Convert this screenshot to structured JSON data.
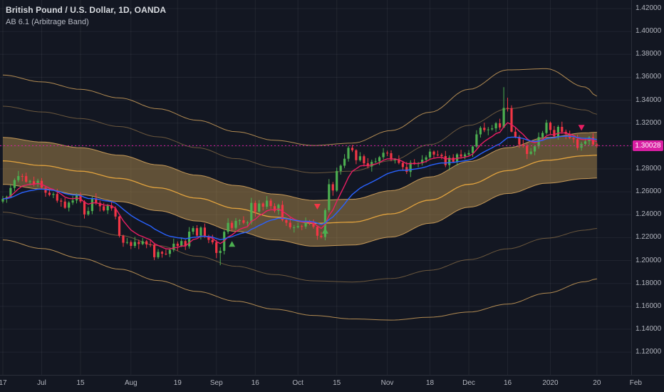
{
  "header": {
    "symbol_title": "British Pound / U.S. Dollar, 1D, OANDA",
    "indicator_label": "AB 6.1 (Arbitrage Band)"
  },
  "colors": {
    "background": "#131722",
    "grid": "rgba(255,255,255,0.06)",
    "axis_text": "#b2b5be",
    "axis_border": "#2a2e39",
    "title_text": "#d8dbe0",
    "legend_text": "#b6bac4",
    "up": "#4caf50",
    "down": "#f23645",
    "band_fill": "rgba(173,137,75,0.5)",
    "band_line": "#c49858",
    "band_center": "#e2a33e",
    "last_price": "#d91ea2"
  },
  "last_price": {
    "text": "1.30028",
    "value": 1.30028
  },
  "price_axis": {
    "ticks": [
      "1.42000",
      "1.40000",
      "1.38000",
      "1.36000",
      "1.34000",
      "1.32000",
      "1.30000",
      "1.28000",
      "1.26000",
      "1.24000",
      "1.22000",
      "1.20000",
      "1.18000",
      "1.16000",
      "1.14000",
      "1.12000"
    ]
  },
  "time_axis": {
    "labels": [
      {
        "text": "17",
        "index": 0
      },
      {
        "text": "Jul",
        "index": 10
      },
      {
        "text": "15",
        "index": 20
      },
      {
        "text": "Aug",
        "index": 33
      },
      {
        "text": "19",
        "index": 45
      },
      {
        "text": "Sep",
        "index": 55
      },
      {
        "text": "16",
        "index": 65
      },
      {
        "text": "Oct",
        "index": 76
      },
      {
        "text": "15",
        "index": 86
      },
      {
        "text": "Nov",
        "index": 99
      },
      {
        "text": "18",
        "index": 110
      },
      {
        "text": "Dec",
        "index": 120
      },
      {
        "text": "16",
        "index": 130
      },
      {
        "text": "2020",
        "index": 141
      },
      {
        "text": "20",
        "index": 153
      },
      {
        "text": "Feb",
        "index": 163
      }
    ]
  },
  "chart_data": {
    "type": "candlestick",
    "title": "British Pound / U.S. Dollar, 1D, OANDA",
    "indicator": "AB 6.1 (Arbitrage Band)",
    "y_range": [
      1.0995,
      1.4275
    ],
    "last_price": 1.30028,
    "candles": [
      [
        1.2515,
        1.2564,
        1.25,
        1.2539
      ],
      [
        1.2539,
        1.2566,
        1.2504,
        1.2556
      ],
      [
        1.2556,
        1.2669,
        1.2544,
        1.2634
      ],
      [
        1.2634,
        1.2717,
        1.2606,
        1.2702
      ],
      [
        1.2702,
        1.2783,
        1.2684,
        1.2738
      ],
      [
        1.2738,
        1.2758,
        1.2692,
        1.2737
      ],
      [
        1.2737,
        1.2767,
        1.2678,
        1.2688
      ],
      [
        1.2688,
        1.2704,
        1.2656,
        1.2692
      ],
      [
        1.2692,
        1.2732,
        1.2647,
        1.2667
      ],
      [
        1.2667,
        1.2714,
        1.2642,
        1.2696
      ],
      [
        1.2696,
        1.2721,
        1.2621,
        1.2636
      ],
      [
        1.2636,
        1.2646,
        1.2557,
        1.2592
      ],
      [
        1.2592,
        1.2627,
        1.2561,
        1.2573
      ],
      [
        1.2573,
        1.2596,
        1.2545,
        1.2581
      ],
      [
        1.2581,
        1.2626,
        1.2505,
        1.2523
      ],
      [
        1.2523,
        1.2543,
        1.247,
        1.2515
      ],
      [
        1.2515,
        1.2545,
        1.2451,
        1.2461
      ],
      [
        1.2461,
        1.2518,
        1.2429,
        1.2506
      ],
      [
        1.2506,
        1.2564,
        1.2486,
        1.2524
      ],
      [
        1.2524,
        1.2588,
        1.2499,
        1.257
      ],
      [
        1.257,
        1.2595,
        1.2501,
        1.2516
      ],
      [
        1.2516,
        1.2526,
        1.2367,
        1.2402
      ],
      [
        1.2402,
        1.2467,
        1.239,
        1.2432
      ],
      [
        1.2432,
        1.2558,
        1.2404,
        1.2543
      ],
      [
        1.2543,
        1.2588,
        1.2485,
        1.2503
      ],
      [
        1.2503,
        1.2523,
        1.2429,
        1.2474
      ],
      [
        1.2474,
        1.2504,
        1.2428,
        1.2438
      ],
      [
        1.2438,
        1.2493,
        1.2406,
        1.2481
      ],
      [
        1.2481,
        1.2521,
        1.2435,
        1.2455
      ],
      [
        1.2455,
        1.2473,
        1.2359,
        1.2384
      ],
      [
        1.2384,
        1.2389,
        1.2201,
        1.2216
      ],
      [
        1.2216,
        1.2226,
        1.212,
        1.2155
      ],
      [
        1.2155,
        1.2196,
        1.2143,
        1.2161
      ],
      [
        1.2161,
        1.2176,
        1.21,
        1.2128
      ],
      [
        1.2128,
        1.2207,
        1.211,
        1.2162
      ],
      [
        1.2162,
        1.2182,
        1.2099,
        1.2144
      ],
      [
        1.2144,
        1.2198,
        1.2134,
        1.2168
      ],
      [
        1.2168,
        1.218,
        1.2108,
        1.214
      ],
      [
        1.214,
        1.218,
        1.2118,
        1.2138
      ],
      [
        1.2138,
        1.2156,
        1.2004,
        1.2029
      ],
      [
        1.2029,
        1.21,
        1.2014,
        1.2075
      ],
      [
        1.2075,
        1.2085,
        1.2025,
        1.206
      ],
      [
        1.206,
        1.2095,
        1.2046,
        1.2058
      ],
      [
        1.2058,
        1.2108,
        1.203,
        1.2093
      ],
      [
        1.2093,
        1.2192,
        1.2075,
        1.2147
      ],
      [
        1.2147,
        1.2167,
        1.2083,
        1.2128
      ],
      [
        1.2128,
        1.22,
        1.2118,
        1.217
      ],
      [
        1.217,
        1.2182,
        1.2092,
        1.2124
      ],
      [
        1.2124,
        1.2292,
        1.2104,
        1.2252
      ],
      [
        1.2252,
        1.2301,
        1.2227,
        1.2283
      ],
      [
        1.2283,
        1.2308,
        1.2203,
        1.2218
      ],
      [
        1.2218,
        1.2298,
        1.2183,
        1.2288
      ],
      [
        1.2288,
        1.2323,
        1.2198,
        1.221
      ],
      [
        1.221,
        1.2225,
        1.2152,
        1.218
      ],
      [
        1.218,
        1.2225,
        1.2141,
        1.2159
      ],
      [
        1.2159,
        1.2179,
        1.2021,
        1.2066
      ],
      [
        1.2066,
        1.2115,
        1.1959,
        1.2085
      ],
      [
        1.2085,
        1.2263,
        1.2053,
        1.2251
      ],
      [
        1.2251,
        1.2369,
        1.2231,
        1.2329
      ],
      [
        1.2329,
        1.2347,
        1.226,
        1.2285
      ],
      [
        1.2285,
        1.2371,
        1.227,
        1.2346
      ],
      [
        1.2346,
        1.2361,
        1.2311,
        1.2351
      ],
      [
        1.2351,
        1.2386,
        1.2317,
        1.2329
      ],
      [
        1.2329,
        1.2347,
        1.2301,
        1.2332
      ],
      [
        1.2332,
        1.2548,
        1.2314,
        1.2503
      ],
      [
        1.2503,
        1.2523,
        1.2382,
        1.2427
      ],
      [
        1.2427,
        1.2528,
        1.2417,
        1.2498
      ],
      [
        1.2498,
        1.251,
        1.2438,
        1.247
      ],
      [
        1.247,
        1.2563,
        1.245,
        1.2523
      ],
      [
        1.2523,
        1.2541,
        1.245,
        1.2475
      ],
      [
        1.2475,
        1.25,
        1.2419,
        1.2434
      ],
      [
        1.2434,
        1.2496,
        1.2399,
        1.2486
      ],
      [
        1.2486,
        1.2521,
        1.2341,
        1.2353
      ],
      [
        1.2353,
        1.2368,
        1.2302,
        1.233
      ],
      [
        1.233,
        1.2375,
        1.2272,
        1.229
      ],
      [
        1.229,
        1.231,
        1.2245,
        1.229
      ],
      [
        1.229,
        1.2331,
        1.228,
        1.2301
      ],
      [
        1.2301,
        1.2313,
        1.2265,
        1.2297
      ],
      [
        1.2297,
        1.2376,
        1.2277,
        1.2336
      ],
      [
        1.2336,
        1.2354,
        1.2308,
        1.2333
      ],
      [
        1.2333,
        1.2358,
        1.2279,
        1.2294
      ],
      [
        1.2294,
        1.2304,
        1.2181,
        1.2216
      ],
      [
        1.2216,
        1.2251,
        1.2193,
        1.2205
      ],
      [
        1.2205,
        1.2455,
        1.2177,
        1.244
      ],
      [
        1.244,
        1.2711,
        1.2422,
        1.2666
      ],
      [
        1.2666,
        1.2686,
        1.2566,
        1.2611
      ],
      [
        1.2611,
        1.2812,
        1.2601,
        1.2782
      ],
      [
        1.2782,
        1.284,
        1.275,
        1.2828
      ],
      [
        1.2828,
        1.2929,
        1.2808,
        1.2889
      ],
      [
        1.2889,
        1.3002,
        1.2864,
        1.2984
      ],
      [
        1.2984,
        1.3009,
        1.2948,
        1.2963
      ],
      [
        1.2963,
        1.2973,
        1.2841,
        1.2876
      ],
      [
        1.2876,
        1.2946,
        1.2864,
        1.2911
      ],
      [
        1.2911,
        1.2926,
        1.2821,
        1.2849
      ],
      [
        1.2849,
        1.2894,
        1.2804,
        1.2822
      ],
      [
        1.2822,
        1.2881,
        1.2777,
        1.2861
      ],
      [
        1.2861,
        1.2896,
        1.2851,
        1.2866
      ],
      [
        1.2866,
        1.2914,
        1.2834,
        1.2902
      ],
      [
        1.2902,
        1.2981,
        1.2882,
        1.2941
      ],
      [
        1.2941,
        1.2959,
        1.2912,
        1.2937
      ],
      [
        1.2937,
        1.2962,
        1.2867,
        1.2882
      ],
      [
        1.2882,
        1.2894,
        1.2847,
        1.2884
      ],
      [
        1.2884,
        1.2919,
        1.284,
        1.2852
      ],
      [
        1.2852,
        1.2867,
        1.2788,
        1.2816
      ],
      [
        1.2816,
        1.2861,
        1.2756,
        1.2774
      ],
      [
        1.2774,
        1.2875,
        1.2729,
        1.2855
      ],
      [
        1.2855,
        1.2885,
        1.2836,
        1.2846
      ],
      [
        1.2846,
        1.2861,
        1.2814,
        1.2849
      ],
      [
        1.2849,
        1.292,
        1.2829,
        1.288
      ],
      [
        1.288,
        1.2919,
        1.2855,
        1.2901
      ],
      [
        1.2901,
        1.2976,
        1.2886,
        1.2951
      ],
      [
        1.2951,
        1.2961,
        1.289,
        1.2925
      ],
      [
        1.2925,
        1.296,
        1.2911,
        1.2923
      ],
      [
        1.2923,
        1.2938,
        1.2884,
        1.2912
      ],
      [
        1.2912,
        1.2957,
        1.2815,
        1.2833
      ],
      [
        1.2833,
        1.2918,
        1.2788,
        1.2898
      ],
      [
        1.2898,
        1.2928,
        1.2852,
        1.2862
      ],
      [
        1.2862,
        1.2939,
        1.283,
        1.2927
      ],
      [
        1.2927,
        1.2967,
        1.2889,
        1.2909
      ],
      [
        1.2909,
        1.2944,
        1.2884,
        1.2926
      ],
      [
        1.2926,
        1.2964,
        1.2911,
        1.2939
      ],
      [
        1.2939,
        1.3005,
        1.2904,
        1.2995
      ],
      [
        1.2995,
        1.3137,
        1.2983,
        1.3102
      ],
      [
        1.3102,
        1.3174,
        1.3074,
        1.3159
      ],
      [
        1.3159,
        1.3204,
        1.3121,
        1.3139
      ],
      [
        1.3139,
        1.3165,
        1.3094,
        1.3145
      ],
      [
        1.3145,
        1.3184,
        1.3135,
        1.3154
      ],
      [
        1.3154,
        1.321,
        1.3122,
        1.3198
      ],
      [
        1.3198,
        1.3238,
        1.3141,
        1.3161
      ],
      [
        1.3161,
        1.3514,
        1.3156,
        1.3333
      ],
      [
        1.3333,
        1.3422,
        1.3301,
        1.3331
      ],
      [
        1.3331,
        1.3355,
        1.3119,
        1.3125
      ],
      [
        1.3125,
        1.316,
        1.3068,
        1.308
      ],
      [
        1.308,
        1.3095,
        1.2984,
        1.3012
      ],
      [
        1.3012,
        1.3057,
        1.2985,
        1.3003
      ],
      [
        1.3003,
        1.3023,
        1.2886,
        1.2931
      ],
      [
        1.2931,
        1.2982,
        1.2921,
        1.2952
      ],
      [
        1.2952,
        1.3009,
        1.292,
        1.2997
      ],
      [
        1.2997,
        1.3118,
        1.2977,
        1.3078
      ],
      [
        1.3078,
        1.3132,
        1.3053,
        1.3114
      ],
      [
        1.3114,
        1.3229,
        1.3099,
        1.3204
      ],
      [
        1.3204,
        1.3214,
        1.3105,
        1.314
      ],
      [
        1.314,
        1.3175,
        1.3073,
        1.3085
      ],
      [
        1.3085,
        1.3182,
        1.3057,
        1.3167
      ],
      [
        1.3167,
        1.3212,
        1.3106,
        1.3124
      ],
      [
        1.3124,
        1.3144,
        1.306,
        1.3105
      ],
      [
        1.3105,
        1.3135,
        1.306,
        1.307
      ],
      [
        1.307,
        1.3082,
        1.3027,
        1.3059
      ],
      [
        1.3059,
        1.3099,
        1.2964,
        1.2984
      ],
      [
        1.2984,
        1.3037,
        1.2959,
        1.3019
      ],
      [
        1.3019,
        1.3066,
        1.3004,
        1.3041
      ],
      [
        1.3041,
        1.3086,
        1.3006,
        1.3076
      ],
      [
        1.3076,
        1.3111,
        1.3001,
        1.3013
      ],
      [
        1.3013,
        1.3028,
        1.2985,
        1.3003
      ]
    ],
    "band": {
      "name": "AB 6.1 (Arbitrage Band)",
      "indices": [
        0,
        10,
        20,
        30,
        40,
        50,
        60,
        70,
        80,
        90,
        100,
        110,
        120,
        130,
        140,
        150,
        153
      ],
      "outer_upper": [
        1.362,
        1.356,
        1.3495,
        1.342,
        1.3325,
        1.3225,
        1.3125,
        1.305,
        1.3005,
        1.3025,
        1.3135,
        1.3295,
        1.3495,
        1.3665,
        1.3675,
        1.3515,
        1.3435
      ],
      "inner_upper": [
        1.3075,
        1.3035,
        1.2985,
        1.292,
        1.2835,
        1.2745,
        1.2655,
        1.258,
        1.2525,
        1.2535,
        1.261,
        1.273,
        1.2865,
        1.2985,
        1.3075,
        1.3115,
        1.312
      ],
      "inner_lower": [
        1.2665,
        1.2625,
        1.2575,
        1.2515,
        1.2435,
        1.2345,
        1.2255,
        1.218,
        1.2125,
        1.2135,
        1.2205,
        1.2325,
        1.2465,
        1.2585,
        1.2675,
        1.2715,
        1.272
      ],
      "outer_lower": [
        1.218,
        1.2105,
        1.202,
        1.1925,
        1.1825,
        1.173,
        1.1645,
        1.1575,
        1.152,
        1.149,
        1.148,
        1.1505,
        1.155,
        1.162,
        1.1715,
        1.1815,
        1.184
      ]
    },
    "moving_averages": [
      {
        "name": "fast-ema-line",
        "period": 8,
        "color": "#e91e63"
      },
      {
        "name": "slow-ema-line",
        "period": 21,
        "color": "#2962ff"
      }
    ],
    "markers": [
      {
        "index": 59,
        "price": 1.217,
        "direction": "up",
        "color": "#4caf50"
      },
      {
        "index": 81,
        "price": 1.2445,
        "direction": "down",
        "color": "#f23645"
      },
      {
        "index": 83,
        "price": 1.2285,
        "direction": "up",
        "color": "#4caf50"
      },
      {
        "index": 149,
        "price": 1.3135,
        "direction": "down",
        "color": "#e91e63"
      }
    ]
  }
}
